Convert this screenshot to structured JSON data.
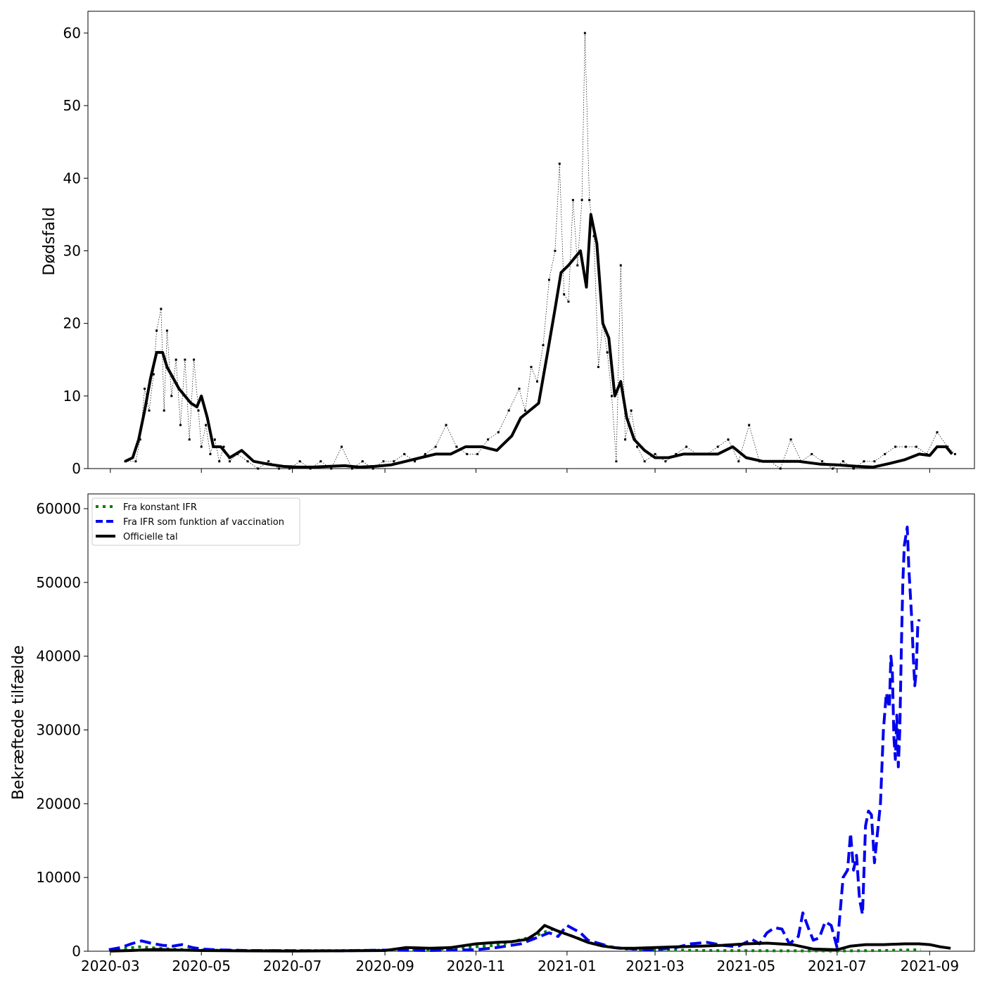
{
  "chart_data": [
    {
      "type": "line",
      "ylabel": "Dødsfald",
      "xlim": [
        "2020-02-15",
        "2021-10-01"
      ],
      "ylim": [
        0,
        63
      ],
      "yticks": [
        "0",
        "10",
        "20",
        "30",
        "40",
        "50",
        "60"
      ],
      "grid": false,
      "series": [
        {
          "style": "dotted-markers",
          "color": "#000000",
          "x": [
            "2020-03-11",
            "2020-03-18",
            "2020-03-21",
            "2020-03-24",
            "2020-03-27",
            "2020-03-30",
            "2020-04-01",
            "2020-04-04",
            "2020-04-06",
            "2020-04-08",
            "2020-04-11",
            "2020-04-14",
            "2020-04-17",
            "2020-04-20",
            "2020-04-23",
            "2020-04-26",
            "2020-04-29",
            "2020-05-01",
            "2020-05-04",
            "2020-05-07",
            "2020-05-10",
            "2020-05-13",
            "2020-05-16",
            "2020-05-20",
            "2020-05-25",
            "2020-06-01",
            "2020-06-08",
            "2020-06-15",
            "2020-06-22",
            "2020-06-29",
            "2020-07-06",
            "2020-07-13",
            "2020-07-20",
            "2020-07-27",
            "2020-08-03",
            "2020-08-10",
            "2020-08-17",
            "2020-08-24",
            "2020-08-31",
            "2020-09-07",
            "2020-09-14",
            "2020-09-21",
            "2020-09-28",
            "2020-10-05",
            "2020-10-12",
            "2020-10-19",
            "2020-10-26",
            "2020-11-02",
            "2020-11-09",
            "2020-11-16",
            "2020-11-23",
            "2020-11-30",
            "2020-12-04",
            "2020-12-08",
            "2020-12-12",
            "2020-12-16",
            "2020-12-20",
            "2020-12-24",
            "2020-12-27",
            "2020-12-30",
            "2021-01-02",
            "2021-01-05",
            "2021-01-08",
            "2021-01-11",
            "2021-01-13",
            "2021-01-16",
            "2021-01-19",
            "2021-01-22",
            "2021-01-25",
            "2021-01-28",
            "2021-01-31",
            "2021-02-03",
            "2021-02-06",
            "2021-02-09",
            "2021-02-13",
            "2021-02-17",
            "2021-02-22",
            "2021-03-01",
            "2021-03-08",
            "2021-03-15",
            "2021-03-22",
            "2021-03-29",
            "2021-04-05",
            "2021-04-12",
            "2021-04-19",
            "2021-04-26",
            "2021-05-03",
            "2021-05-10",
            "2021-05-17",
            "2021-05-24",
            "2021-05-31",
            "2021-06-07",
            "2021-06-14",
            "2021-06-21",
            "2021-06-28",
            "2021-07-05",
            "2021-07-12",
            "2021-07-19",
            "2021-07-26",
            "2021-08-02",
            "2021-08-09",
            "2021-08-16",
            "2021-08-23",
            "2021-08-30",
            "2021-09-06",
            "2021-09-13",
            "2021-09-18"
          ],
          "y": [
            1,
            1,
            4,
            11,
            8,
            13,
            19,
            22,
            8,
            19,
            10,
            15,
            6,
            15,
            4,
            15,
            8,
            3,
            6,
            2,
            4,
            1,
            3,
            1,
            2,
            1,
            0,
            1,
            0,
            0,
            1,
            0,
            1,
            0,
            3,
            0,
            1,
            0,
            1,
            1,
            2,
            1,
            2,
            3,
            6,
            3,
            2,
            2,
            4,
            5,
            8,
            11,
            8,
            14,
            12,
            17,
            26,
            30,
            42,
            24,
            23,
            37,
            28,
            37,
            60,
            37,
            32,
            14,
            20,
            16,
            10,
            1,
            28,
            4,
            8,
            3,
            1,
            2,
            1,
            2,
            3,
            2,
            2,
            3,
            4,
            1,
            6,
            1,
            1,
            0,
            4,
            1,
            2,
            1,
            0,
            1,
            0,
            1,
            1,
            2,
            3,
            3,
            3,
            2,
            5,
            3,
            2
          ]
        },
        {
          "style": "solid",
          "color": "#000000",
          "x": [
            "2020-03-11",
            "2020-03-16",
            "2020-03-20",
            "2020-03-24",
            "2020-03-28",
            "2020-04-01",
            "2020-04-05",
            "2020-04-08",
            "2020-04-12",
            "2020-04-16",
            "2020-04-20",
            "2020-04-24",
            "2020-04-28",
            "2020-05-01",
            "2020-05-05",
            "2020-05-09",
            "2020-05-14",
            "2020-05-20",
            "2020-05-28",
            "2020-06-05",
            "2020-06-15",
            "2020-06-25",
            "2020-07-05",
            "2020-07-15",
            "2020-07-25",
            "2020-08-05",
            "2020-08-15",
            "2020-08-25",
            "2020-09-05",
            "2020-09-15",
            "2020-09-25",
            "2020-10-05",
            "2020-10-15",
            "2020-10-25",
            "2020-11-05",
            "2020-11-15",
            "2020-11-25",
            "2020-12-01",
            "2020-12-07",
            "2020-12-13",
            "2020-12-19",
            "2020-12-24",
            "2020-12-28",
            "2021-01-02",
            "2021-01-06",
            "2021-01-10",
            "2021-01-14",
            "2021-01-17",
            "2021-01-21",
            "2021-01-25",
            "2021-01-29",
            "2021-02-02",
            "2021-02-06",
            "2021-02-10",
            "2021-02-15",
            "2021-02-22",
            "2021-03-01",
            "2021-03-10",
            "2021-03-20",
            "2021-04-01",
            "2021-04-12",
            "2021-04-22",
            "2021-05-01",
            "2021-05-12",
            "2021-05-25",
            "2021-06-05",
            "2021-06-20",
            "2021-07-01",
            "2021-07-15",
            "2021-07-25",
            "2021-08-05",
            "2021-08-15",
            "2021-08-25",
            "2021-09-01",
            "2021-09-06",
            "2021-09-12",
            "2021-09-16"
          ],
          "y": [
            1,
            1.5,
            4,
            8,
            12.5,
            16,
            16,
            14,
            12.5,
            11,
            10,
            9,
            8.5,
            10,
            7,
            3,
            3,
            1.5,
            2.5,
            1,
            0.6,
            0.3,
            0.2,
            0.2,
            0.3,
            0.4,
            0.2,
            0.3,
            0.5,
            1,
            1.5,
            2,
            2,
            3,
            3,
            2.5,
            4.5,
            7,
            8,
            9,
            16,
            22,
            27,
            28,
            29,
            30,
            25,
            35,
            31,
            20,
            18,
            10,
            12,
            7,
            4,
            2.5,
            1.5,
            1.5,
            2,
            2,
            2,
            3,
            1.5,
            1,
            1,
            1,
            0.6,
            0.5,
            0.3,
            0.2,
            0.7,
            1.2,
            2,
            1.8,
            3,
            3,
            2
          ]
        }
      ]
    },
    {
      "type": "line",
      "ylabel": "Bekræftede tilfælde",
      "xlim": [
        "2020-02-15",
        "2021-10-01"
      ],
      "ylim": [
        0,
        62000
      ],
      "xticks": [
        "2020-03",
        "2020-05",
        "2020-07",
        "2020-09",
        "2020-11",
        "2021-01",
        "2021-03",
        "2021-05",
        "2021-07",
        "2021-09"
      ],
      "yticks": [
        "0",
        "10000",
        "20000",
        "30000",
        "40000",
        "50000",
        "60000"
      ],
      "grid": false,
      "legend_position": "top-left",
      "series": [
        {
          "name": "Fra konstant IFR",
          "style": "dotted",
          "color": "#008000",
          "x": [
            "2020-03-01",
            "2020-03-20",
            "2020-04-10",
            "2020-05-01",
            "2020-06-01",
            "2020-08-01",
            "2020-10-01",
            "2020-11-15",
            "2020-12-10",
            "2020-12-22",
            "2021-01-05",
            "2021-01-20",
            "2021-02-10",
            "2021-03-01",
            "2021-04-01",
            "2021-05-01",
            "2021-06-01",
            "2021-07-01",
            "2021-08-01",
            "2021-08-26"
          ],
          "y": [
            100,
            600,
            300,
            150,
            100,
            80,
            200,
            800,
            2000,
            3000,
            2000,
            900,
            300,
            200,
            100,
            80,
            60,
            40,
            100,
            200
          ]
        },
        {
          "name": "Fra IFR som funktion af vaccination",
          "style": "dashed",
          "color": "#0000ee",
          "x": [
            "2020-02-29",
            "2020-03-08",
            "2020-03-15",
            "2020-03-22",
            "2020-03-28",
            "2020-04-05",
            "2020-04-12",
            "2020-04-18",
            "2020-04-25",
            "2020-05-02",
            "2020-05-10",
            "2020-05-20",
            "2020-06-01",
            "2020-07-01",
            "2020-08-01",
            "2020-09-01",
            "2020-10-01",
            "2020-11-01",
            "2020-11-15",
            "2020-12-01",
            "2020-12-10",
            "2020-12-20",
            "2020-12-26",
            "2021-01-01",
            "2021-01-10",
            "2021-01-15",
            "2021-01-20",
            "2021-02-01",
            "2021-02-15",
            "2021-03-01",
            "2021-03-15",
            "2021-03-25",
            "2021-04-05",
            "2021-04-15",
            "2021-04-25",
            "2021-05-05",
            "2021-05-10",
            "2021-05-15",
            "2021-05-20",
            "2021-05-25",
            "2021-05-30",
            "2021-06-05",
            "2021-06-08",
            "2021-06-12",
            "2021-06-15",
            "2021-06-19",
            "2021-06-23",
            "2021-06-27",
            "2021-07-01",
            "2021-07-05",
            "2021-07-08",
            "2021-07-10",
            "2021-07-12",
            "2021-07-14",
            "2021-07-16",
            "2021-07-18",
            "2021-07-20",
            "2021-07-22",
            "2021-07-24",
            "2021-07-26",
            "2021-07-28",
            "2021-07-30",
            "2021-08-01",
            "2021-08-03",
            "2021-08-05",
            "2021-08-06",
            "2021-08-07",
            "2021-08-08",
            "2021-08-09",
            "2021-08-10",
            "2021-08-11",
            "2021-08-12",
            "2021-08-13",
            "2021-08-14",
            "2021-08-15",
            "2021-08-17",
            "2021-08-18",
            "2021-08-20",
            "2021-08-21",
            "2021-08-22",
            "2021-08-23",
            "2021-08-24",
            "2021-08-25"
          ],
          "y": [
            200,
            500,
            1000,
            1400,
            1100,
            800,
            700,
            900,
            500,
            300,
            200,
            150,
            100,
            80,
            50,
            150,
            100,
            200,
            500,
            1000,
            1700,
            2500,
            2000,
            3500,
            2500,
            1500,
            1200,
            500,
            300,
            200,
            500,
            1000,
            1200,
            800,
            600,
            1600,
            1000,
            2500,
            3200,
            3000,
            1000,
            2000,
            5200,
            3000,
            1500,
            1800,
            4000,
            3500,
            500,
            10000,
            11000,
            16000,
            11000,
            13000,
            7000,
            5000,
            17000,
            19000,
            18500,
            12000,
            16000,
            20000,
            30000,
            35000,
            33000,
            40000,
            38000,
            29000,
            26000,
            32000,
            25000,
            30000,
            41000,
            50000,
            55000,
            57500,
            52000,
            45000,
            40000,
            36000,
            38000,
            44000,
            45000
          ]
        },
        {
          "name": "Officielle tal",
          "style": "solid",
          "color": "#000000",
          "x": [
            "2020-03-01",
            "2020-03-15",
            "2020-04-01",
            "2020-04-15",
            "2020-05-01",
            "2020-06-01",
            "2020-07-01",
            "2020-08-01",
            "2020-09-01",
            "2020-09-15",
            "2020-10-01",
            "2020-10-15",
            "2020-11-01",
            "2020-11-15",
            "2020-11-25",
            "2020-12-05",
            "2020-12-12",
            "2020-12-17",
            "2020-12-25",
            "2021-01-05",
            "2021-01-15",
            "2021-01-25",
            "2021-02-05",
            "2021-02-15",
            "2021-03-01",
            "2021-03-15",
            "2021-04-01",
            "2021-04-15",
            "2021-05-01",
            "2021-05-15",
            "2021-06-01",
            "2021-06-15",
            "2021-07-01",
            "2021-07-10",
            "2021-07-20",
            "2021-08-01",
            "2021-08-15",
            "2021-08-25",
            "2021-09-01",
            "2021-09-08",
            "2021-09-15"
          ],
          "y": [
            20,
            100,
            250,
            150,
            100,
            50,
            30,
            60,
            100,
            500,
            400,
            500,
            1000,
            1200,
            1300,
            1600,
            2500,
            3500,
            2800,
            2000,
            1200,
            700,
            400,
            400,
            500,
            600,
            700,
            800,
            1000,
            1100,
            900,
            300,
            200,
            700,
            900,
            900,
            1000,
            1000,
            900,
            600,
            400
          ]
        }
      ]
    }
  ]
}
